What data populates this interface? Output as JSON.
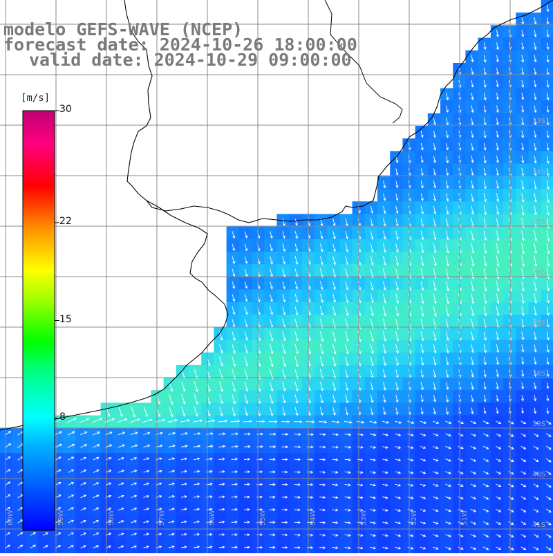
{
  "header": {
    "title": "modelo GEFS-WAVE (NCEP)",
    "forecast": "forecast date: 2024-10-26 18:00:00",
    "valid": "valid date: 2024-10-29 09:00:00"
  },
  "colorbar": {
    "unit": "[m/s]",
    "min": 0,
    "max": 30,
    "ticks": [
      {
        "value": 30,
        "label": "30"
      },
      {
        "value": 22,
        "label": "22"
      },
      {
        "value": 15,
        "label": "15"
      },
      {
        "value": 8,
        "label": "8"
      }
    ]
  },
  "map": {
    "lat_labels": [
      "33S",
      "34S",
      "35S",
      "36S",
      "37S",
      "38S",
      "39S",
      "40S",
      "41S"
    ],
    "lon_labels": [
      "60W",
      "59W",
      "58W",
      "57W",
      "56W",
      "55W",
      "54W",
      "53W",
      "52W",
      "51W"
    ],
    "field": "wind speed (m/s) with direction vectors",
    "colors": {
      "calm": "#1050ff",
      "moderate": "#1aa8ff",
      "strong": "#3fe8d8",
      "land": "#ffffff",
      "grid": "#888888",
      "coast": "#000000"
    }
  }
}
